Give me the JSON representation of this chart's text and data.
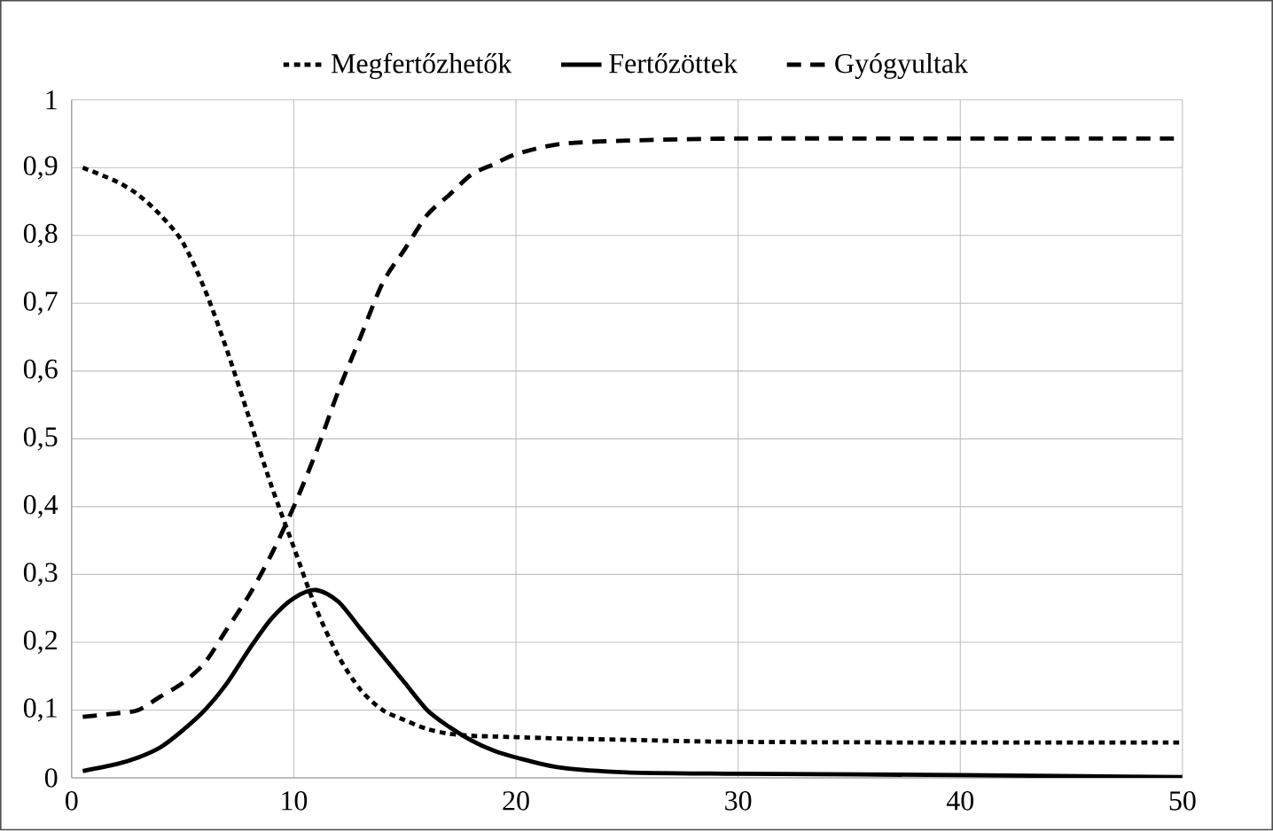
{
  "chart_data": {
    "type": "line",
    "legend": "top",
    "grid": true,
    "xlim": [
      0,
      50
    ],
    "ylim": [
      0,
      1
    ],
    "xticks": [
      0,
      10,
      20,
      30,
      40,
      50
    ],
    "yticks": [
      0,
      {
        "value": 0.1,
        "label": "0,1"
      },
      {
        "value": 0.2,
        "label": "0,2"
      },
      {
        "value": 0.3,
        "label": "0,3"
      },
      {
        "value": 0.4,
        "label": "0,4"
      },
      {
        "value": 0.5,
        "label": "0,5"
      },
      {
        "value": 0.6,
        "label": "0,6"
      },
      {
        "value": 0.7,
        "label": "0,7"
      },
      {
        "value": 0.8,
        "label": "0,8"
      },
      {
        "value": 0.9,
        "label": "0,9"
      },
      1
    ],
    "x": [
      0.5,
      2,
      3,
      4,
      5,
      6,
      7,
      8,
      9,
      10,
      11,
      12,
      13,
      14,
      15,
      16,
      17,
      18,
      19,
      20,
      22,
      25,
      30,
      40,
      50
    ],
    "series": [
      {
        "name": "Megfertőzhetők",
        "color": "#000000",
        "line_style": "dotted",
        "values": [
          0.9,
          0.88,
          0.86,
          0.83,
          0.79,
          0.72,
          0.63,
          0.53,
          0.43,
          0.34,
          0.25,
          0.18,
          0.13,
          0.1,
          0.085,
          0.072,
          0.065,
          0.062,
          0.061,
          0.06,
          0.058,
          0.056,
          0.053,
          0.052,
          0.052
        ]
      },
      {
        "name": "Fertőzöttek",
        "color": "#000000",
        "line_style": "solid",
        "values": [
          0.01,
          0.02,
          0.03,
          0.045,
          0.07,
          0.1,
          0.14,
          0.19,
          0.235,
          0.265,
          0.277,
          0.26,
          0.22,
          0.18,
          0.14,
          0.1,
          0.075,
          0.055,
          0.04,
          0.03,
          0.015,
          0.008,
          0.006,
          0.004,
          0.001
        ]
      },
      {
        "name": "Gyógyultak",
        "color": "#000000",
        "line_style": "dashed",
        "values": [
          0.09,
          0.095,
          0.1,
          0.12,
          0.14,
          0.17,
          0.22,
          0.27,
          0.33,
          0.4,
          0.48,
          0.57,
          0.65,
          0.73,
          0.78,
          0.83,
          0.86,
          0.89,
          0.905,
          0.92,
          0.935,
          0.94,
          0.943,
          0.943,
          0.943
        ]
      }
    ]
  }
}
